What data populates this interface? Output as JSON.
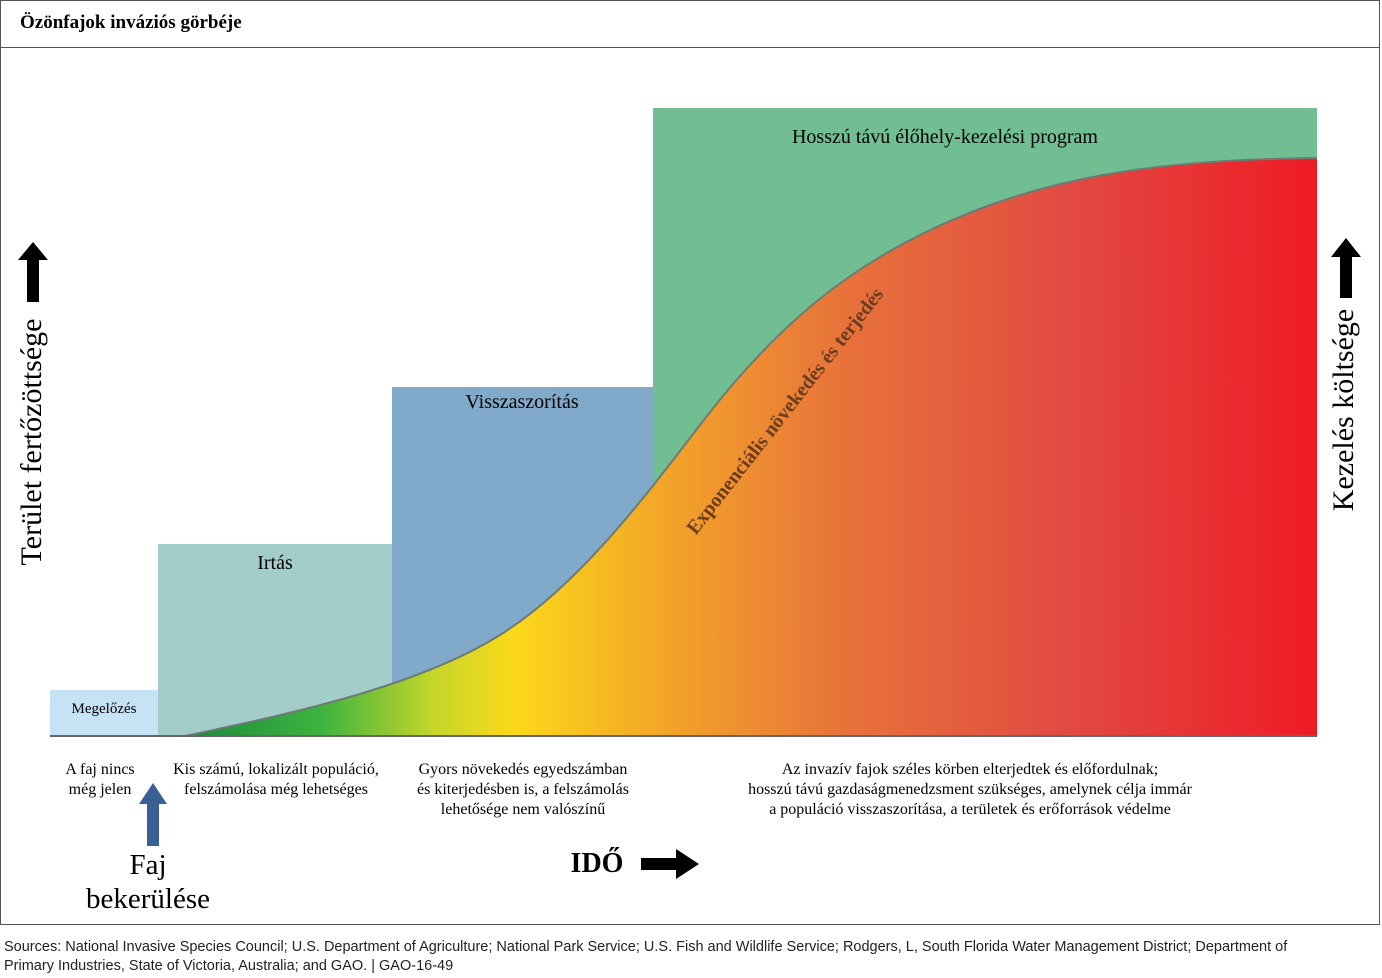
{
  "title": "Özönfajok inváziós görbéje",
  "y_axis_left": "Terület fertőzöttsége",
  "y_axis_right": "Kezelés költsége",
  "x_axis": "IDŐ",
  "curve_label": "Exponenciális növekedés és terjedés",
  "phases": [
    {
      "name": "Megelőzés",
      "color": "#c6e2f5"
    },
    {
      "name": "Irtás",
      "color": "#a2cdca"
    },
    {
      "name": "Visszaszorítás",
      "color": "#81a9c9"
    },
    {
      "name": "Hosszú távú élőhely-kezelési program",
      "color": "#71be92"
    }
  ],
  "stage_descriptions": [
    {
      "line1": "A faj nincs",
      "line2": "még jelen"
    },
    {
      "line1": "Kis számú, lokalizált populáció,",
      "line2": "felszámolása még lehetséges"
    },
    {
      "line1": "Gyors növekedés egyedszámban",
      "line2": "és kiterjedésben is, a felszámolás",
      "line3": "lehetősége nem valószínű"
    },
    {
      "line1": "Az invazív fajok széles körben elterjedtek és előfordulnak;",
      "line2": "hosszú távú gazdaságmenedzsment szükséges, amelynek célja immár",
      "line3": "a populáció visszaszorítása, a területek és erőforrások védelme"
    }
  ],
  "introduction": {
    "line1": "Faj",
    "line2": "bekerülése",
    "arrow_color": "#3a5f94"
  },
  "sources": {
    "line1": "Sources: National Invasive Species Council; U.S. Department of Agriculture; National Park Service; U.S. Fish and Wildlife Service; Rodgers, L, South Florida Water Management District; Department of",
    "line2": "Primary Industries, State of Victoria, Australia; and GAO.  |  GAO-16-49"
  }
}
